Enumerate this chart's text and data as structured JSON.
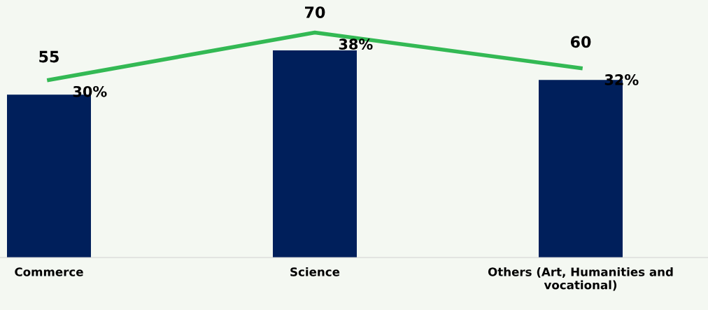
{
  "chart_data": {
    "type": "bar",
    "categories": [
      "Commerce",
      "Science",
      "Others (Art, Humanities and vocational)"
    ],
    "series": [
      {
        "color": "#001f5b",
        "values": [
          55,
          70,
          60
        ],
        "value_labels": [
          "55",
          "70",
          "60"
        ]
      },
      {
        "type": "line",
        "axis": "y2",
        "color": "#33b954",
        "values": [
          30,
          38,
          32
        ],
        "value_labels": [
          "30%",
          "38%",
          "32%"
        ]
      }
    ],
    "ylim": [
      0,
      87
    ],
    "y2lim": [
      0,
      43.5
    ],
    "tick_labels": "x",
    "grid": false,
    "legend": false,
    "marker": "none",
    "line_style": "solid"
  }
}
